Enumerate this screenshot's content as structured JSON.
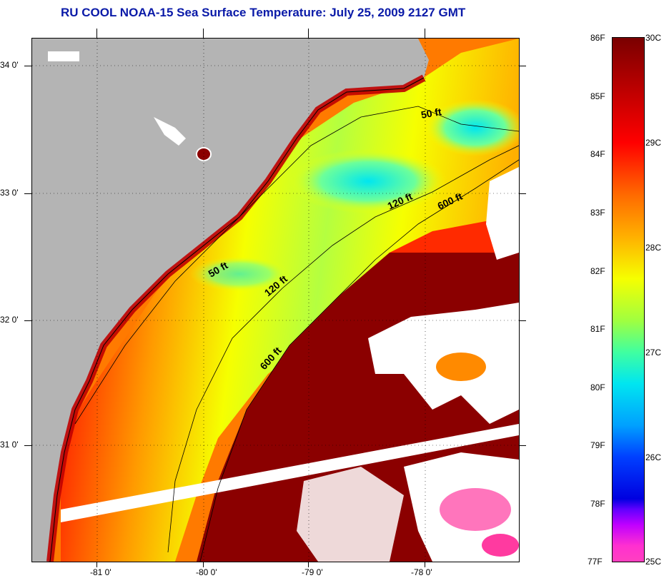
{
  "title": "RU COOL  NOAA-15  Sea Surface Temperature:  July 25, 2009 2127 GMT",
  "map": {
    "lat_labels": [
      "34 0'",
      "33 0'",
      "32 0'",
      "31 0'"
    ],
    "lon_labels": [
      "-81 0'",
      "-80 0'",
      "-79 0'",
      "-78 0'"
    ],
    "contours": [
      "50 ft",
      "120 ft",
      "600 ft",
      "50 ft",
      "120 ft",
      "600 ft"
    ],
    "colors": {
      "land": "#b4b4b4",
      "cloud": "#ffffff",
      "hot": "#8b0000",
      "warm": "#ff2a00",
      "mid": "#ff9a00",
      "cool_mid": "#f6ff00",
      "cool": "#6cff6c",
      "cold": "#00e6f0"
    }
  },
  "colorbar": {
    "f_labels": [
      "86F",
      "85F",
      "84F",
      "83F",
      "82F",
      "81F",
      "80F",
      "79F",
      "78F",
      "77F"
    ],
    "c_labels": [
      "30C",
      "29C",
      "28C",
      "27C",
      "26C",
      "25C"
    ]
  }
}
